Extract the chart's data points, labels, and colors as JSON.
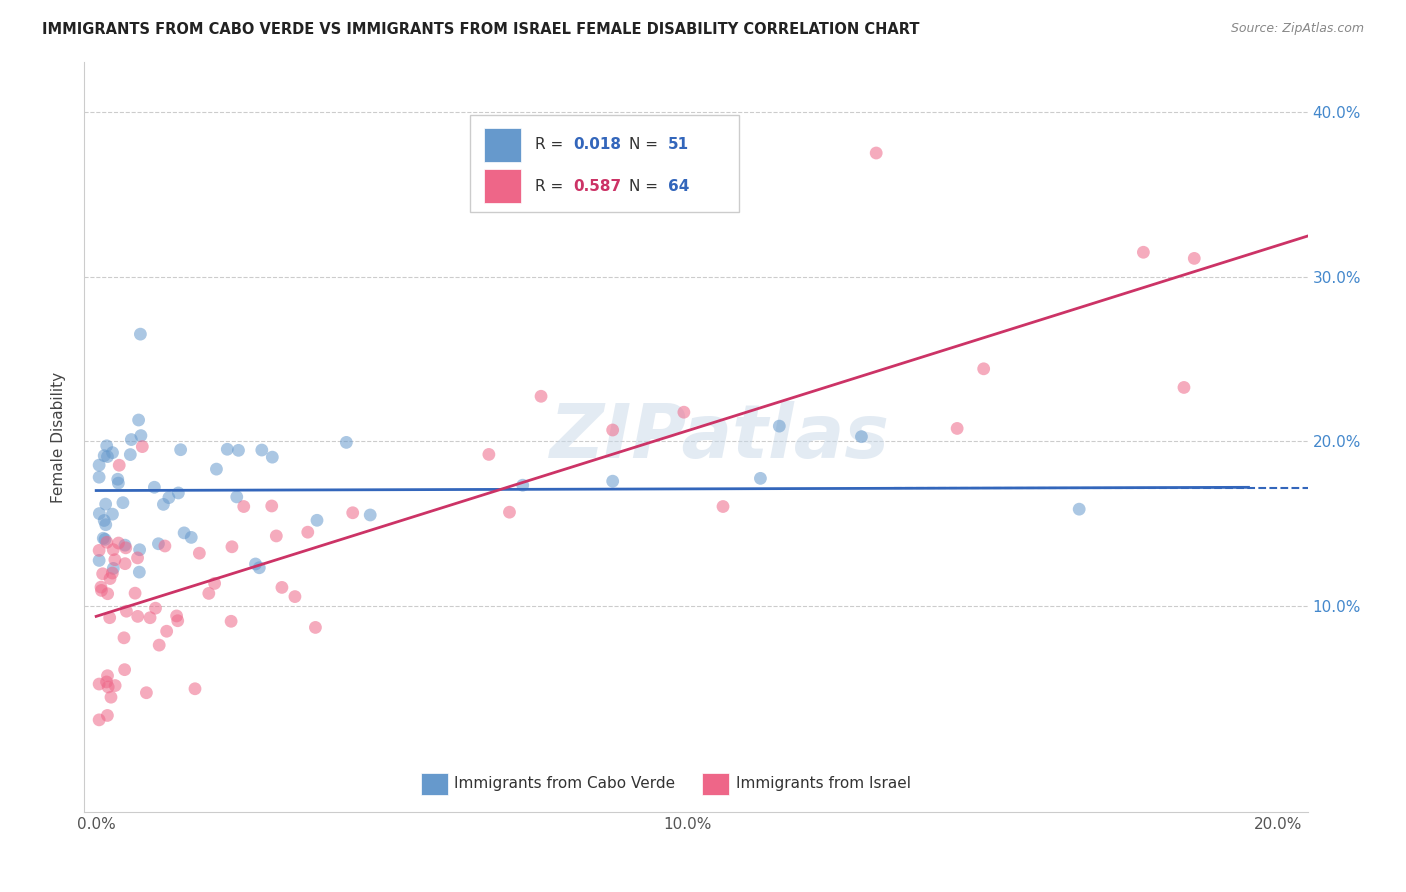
{
  "title": "IMMIGRANTS FROM CABO VERDE VS IMMIGRANTS FROM ISRAEL FEMALE DISABILITY CORRELATION CHART",
  "source": "Source: ZipAtlas.com",
  "ylabel": "Female Disability",
  "cabo_verde_R": 0.018,
  "cabo_verde_N": 51,
  "israel_R": 0.587,
  "israel_N": 64,
  "cabo_verde_color": "#6699cc",
  "israel_color": "#ee6688",
  "cabo_verde_line_color": "#3366bb",
  "israel_line_color": "#cc3366",
  "watermark": "ZIPatlas",
  "background_color": "#ffffff",
  "grid_color": "#cccccc",
  "right_tick_color": "#4488cc",
  "legend_blue_color": "#3366bb",
  "legend_pink_color": "#cc3366",
  "title_color": "#222222",
  "source_color": "#888888",
  "tick_color": "#555555"
}
